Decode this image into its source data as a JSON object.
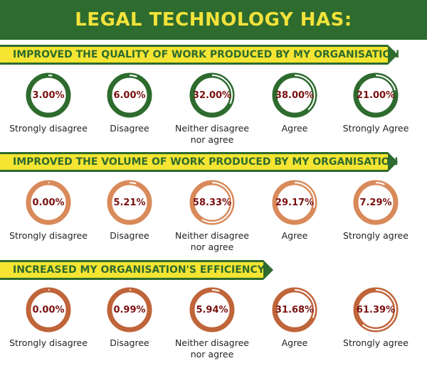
{
  "header": {
    "title": "LEGAL TECHNOLOGY HAS:"
  },
  "colors": {
    "green": "#2e6b2e",
    "yellow": "#f5e532",
    "orange": "#d98a5a",
    "copper": "#c0643a",
    "value_text": "#7a1010"
  },
  "sections": [
    {
      "title": "IMPROVED THE QUALITY OF WORK PRODUCED BY MY ORGANISATION",
      "items": [
        {
          "value": "3.00%",
          "label": "Strongly disagree"
        },
        {
          "value": "6.00%",
          "label": "Disagree"
        },
        {
          "value": "32.00%",
          "label": "Neither disagree nor agree"
        },
        {
          "value": "38.00%",
          "label": "Agree"
        },
        {
          "value": "21.00%",
          "label": "Strongly Agree"
        }
      ]
    },
    {
      "title": "IMPROVED THE VOLUME OF WORK PRODUCED BY MY ORGANISATION",
      "items": [
        {
          "value": "0.00%",
          "label": "Strongly disagree"
        },
        {
          "value": "5.21%",
          "label": "Disagree"
        },
        {
          "value": "58.33%",
          "label": "Neither disagree nor agree"
        },
        {
          "value": "29.17%",
          "label": "Agree"
        },
        {
          "value": "7.29%",
          "label": "Strongly agree"
        }
      ]
    },
    {
      "title": "INCREASED MY ORGANISATION'S EFFICIENCY",
      "items": [
        {
          "value": "0.00%",
          "label": "Strongly disagree"
        },
        {
          "value": "0.99%",
          "label": "Disagree"
        },
        {
          "value": "5.94%",
          "label": "Neither disagree nor agree"
        },
        {
          "value": "31.68%",
          "label": "Agree"
        },
        {
          "value": "61.39%",
          "label": "Strongly agree"
        }
      ]
    }
  ],
  "chart_data": [
    {
      "type": "pie",
      "title": "IMPROVED THE QUALITY OF WORK PRODUCED BY MY ORGANISATION",
      "categories": [
        "Strongly disagree",
        "Disagree",
        "Neither disagree nor agree",
        "Agree",
        "Strongly Agree"
      ],
      "values": [
        3.0,
        6.0,
        32.0,
        38.0,
        21.0
      ],
      "color": "#2e6b2e"
    },
    {
      "type": "pie",
      "title": "IMPROVED THE VOLUME OF WORK PRODUCED BY MY ORGANISATION",
      "categories": [
        "Strongly disagree",
        "Disagree",
        "Neither disagree nor agree",
        "Agree",
        "Strongly agree"
      ],
      "values": [
        0.0,
        5.21,
        58.33,
        29.17,
        7.29
      ],
      "color": "#d98a5a"
    },
    {
      "type": "pie",
      "title": "INCREASED MY ORGANISATION'S EFFICIENCY",
      "categories": [
        "Strongly disagree",
        "Disagree",
        "Neither disagree nor agree",
        "Agree",
        "Strongly agree"
      ],
      "values": [
        0.0,
        0.99,
        5.94,
        31.68,
        61.39
      ],
      "color": "#c0643a"
    }
  ]
}
